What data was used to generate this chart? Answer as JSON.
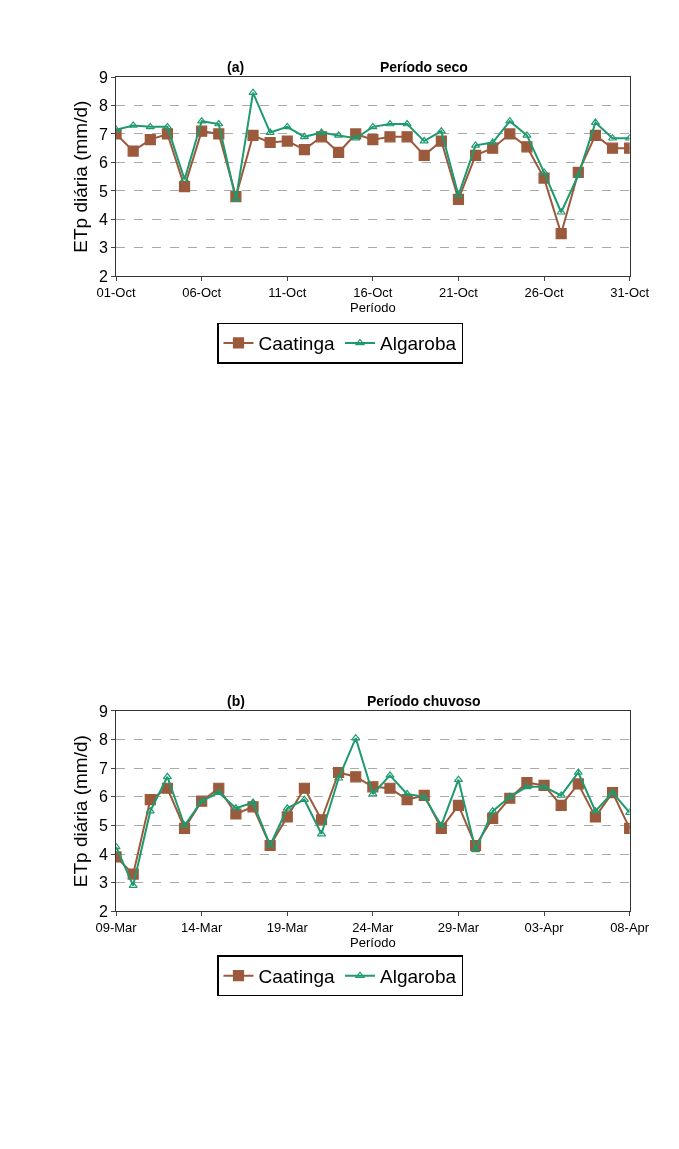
{
  "chart_data": [
    {
      "type": "line",
      "title": "Período seco",
      "annotations": [
        "(a)"
      ],
      "xlabel": "Período",
      "ylabel": "ETp diária (mm/d)",
      "x": [
        "--10-01",
        "--10-02",
        "--10-03",
        "--10-04",
        "--10-05",
        "--10-06",
        "--10-07",
        "--10-08",
        "--10-09",
        "--10-10",
        "--10-11",
        "--10-12",
        "--10-13",
        "--10-14",
        "--10-15",
        "--10-16",
        "--10-17",
        "--10-18",
        "--10-19",
        "--10-20",
        "--10-21",
        "--10-22",
        "--10-23",
        "--10-24",
        "--10-25",
        "--10-26",
        "--10-27",
        "--10-28",
        "--10-29",
        "--10-30",
        "--10-31"
      ],
      "series": [
        {
          "name": "Caatinga",
          "color": "#9c5a3c",
          "marker": "square",
          "values": [
            7.0,
            6.4,
            6.8,
            7.0,
            5.15,
            7.1,
            7.0,
            4.8,
            6.95,
            6.7,
            6.75,
            6.45,
            6.9,
            6.35,
            7.0,
            6.8,
            6.9,
            6.9,
            6.25,
            6.75,
            4.7,
            6.25,
            6.5,
            7.0,
            6.55,
            5.45,
            3.5,
            5.65,
            6.95,
            6.5,
            6.5
          ]
        },
        {
          "name": "Algaroba",
          "color": "#1e9a6e",
          "marker": "triangle",
          "values": [
            7.15,
            7.3,
            7.25,
            7.25,
            5.4,
            7.45,
            7.35,
            4.7,
            8.45,
            7.05,
            7.25,
            6.9,
            7.05,
            6.95,
            6.85,
            7.25,
            7.35,
            7.35,
            6.75,
            7.1,
            4.85,
            6.6,
            6.7,
            7.45,
            6.95,
            5.65,
            4.25,
            5.55,
            7.4,
            6.85,
            6.85
          ]
        }
      ],
      "xlim": [
        "--10-01",
        "--10-31"
      ],
      "xticks": [
        {
          "value": "--10-01",
          "label": "01-Oct"
        },
        {
          "value": "--10-06",
          "label": "06-Oct"
        },
        {
          "value": "--10-11",
          "label": "11-Oct"
        },
        {
          "value": "--10-16",
          "label": "16-Oct"
        },
        {
          "value": "--10-21",
          "label": "21-Oct"
        },
        {
          "value": "--10-26",
          "label": "26-Oct"
        },
        {
          "value": "--10-31",
          "label": "31-Oct"
        }
      ],
      "ylim": [
        2,
        9
      ],
      "yticks": [
        2,
        3,
        4,
        5,
        6,
        7,
        8,
        9
      ],
      "grid": "y",
      "legend": "bottom",
      "line_style": "solid"
    },
    {
      "type": "line",
      "title": "Período chuvoso",
      "annotations": [
        "(b)"
      ],
      "xlabel": "Período",
      "ylabel": "ETp diária (mm/d)",
      "x": [
        "--03-09",
        "--03-10",
        "--03-11",
        "--03-12",
        "--03-13",
        "--03-14",
        "--03-15",
        "--03-16",
        "--03-17",
        "--03-18",
        "--03-19",
        "--03-20",
        "--03-21",
        "--03-22",
        "--03-23",
        "--03-24",
        "--03-25",
        "--03-26",
        "--03-27",
        "--03-28",
        "--03-29",
        "--03-30",
        "--03-31",
        "--04-01",
        "--04-02",
        "--04-03",
        "--04-04",
        "--04-05",
        "--04-06",
        "--04-07",
        "--04-08"
      ],
      "series": [
        {
          "name": "Caatinga",
          "color": "#9c5a3c",
          "marker": "square",
          "values": [
            3.9,
            3.3,
            5.9,
            6.3,
            4.9,
            5.85,
            6.3,
            5.4,
            5.65,
            4.3,
            5.3,
            6.3,
            5.2,
            6.85,
            6.7,
            6.35,
            6.3,
            5.9,
            6.05,
            4.9,
            5.7,
            4.3,
            5.25,
            5.95,
            6.5,
            6.4,
            5.7,
            6.45,
            5.3,
            6.15,
            4.9
          ]
        },
        {
          "name": "Algaroba",
          "color": "#1e9a6e",
          "marker": "triangle",
          "values": [
            4.25,
            2.9,
            5.5,
            6.7,
            5.0,
            5.85,
            6.15,
            5.6,
            5.8,
            4.3,
            5.6,
            5.9,
            4.7,
            6.65,
            8.05,
            6.1,
            6.75,
            6.1,
            6.0,
            5.0,
            6.6,
            4.15,
            5.5,
            6.0,
            6.35,
            6.35,
            6.05,
            6.85,
            5.5,
            6.15,
            5.45
          ]
        }
      ],
      "xlim": [
        "--03-09",
        "--04-08"
      ],
      "xticks": [
        {
          "value": "--03-09",
          "label": "09-Mar"
        },
        {
          "value": "--03-14",
          "label": "14-Mar"
        },
        {
          "value": "--03-19",
          "label": "19-Mar"
        },
        {
          "value": "--03-24",
          "label": "24-Mar"
        },
        {
          "value": "--03-29",
          "label": "29-Mar"
        },
        {
          "value": "--04-03",
          "label": "03-Apr"
        },
        {
          "value": "--04-08",
          "label": "08-Apr"
        }
      ],
      "ylim": [
        2,
        9
      ],
      "yticks": [
        2,
        3,
        4,
        5,
        6,
        7,
        8,
        9
      ],
      "grid": "y",
      "legend": "bottom",
      "line_style": "solid"
    }
  ]
}
